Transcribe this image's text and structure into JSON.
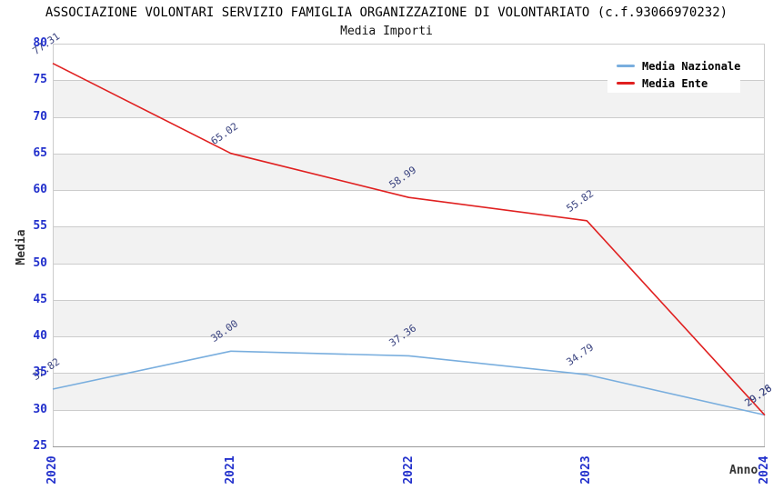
{
  "header": {
    "title": "ASSOCIAZIONE VOLONTARI SERVIZIO FAMIGLIA ORGANIZZAZIONE DI VOLONTARIATO (c.f.93066970232)",
    "subtitle": "Media Importi"
  },
  "chart_data": {
    "type": "line",
    "title": "ASSOCIAZIONE VOLONTARI SERVIZIO FAMIGLIA ORGANIZZAZIONE DI VOLONTARIATO (c.f.93066970232)",
    "subtitle": "Media Importi",
    "x": [
      "2020",
      "2021",
      "2022",
      "2023",
      "2024"
    ],
    "xlabel": "Anno",
    "ylabel": "Media",
    "ylim": [
      25,
      80
    ],
    "ytick_step": 5,
    "yticks": [
      25,
      30,
      35,
      40,
      45,
      50,
      55,
      60,
      65,
      70,
      75,
      80
    ],
    "grid": true,
    "legend_position": "top-right",
    "series": [
      {
        "name": "Media Nazionale",
        "color": "#79aede",
        "values": [
          32.82,
          38.0,
          37.36,
          34.79,
          29.28
        ],
        "point_labels": [
          "32.82",
          "38.00",
          "37.36",
          "34.79",
          "29.28"
        ]
      },
      {
        "name": "Media Ente",
        "color": "#e02020",
        "values": [
          77.31,
          65.02,
          58.99,
          55.82,
          29.26
        ],
        "point_labels": [
          "77.31",
          "65.02",
          "58.99",
          "55.82",
          "29.26"
        ]
      }
    ],
    "colors": {
      "band": "#f2f2f2",
      "gridline": "#cccccc",
      "axis_line": "#999999",
      "tick_label": "#2230cc",
      "point_label": "#39427f",
      "axis_title": "#333333"
    }
  }
}
